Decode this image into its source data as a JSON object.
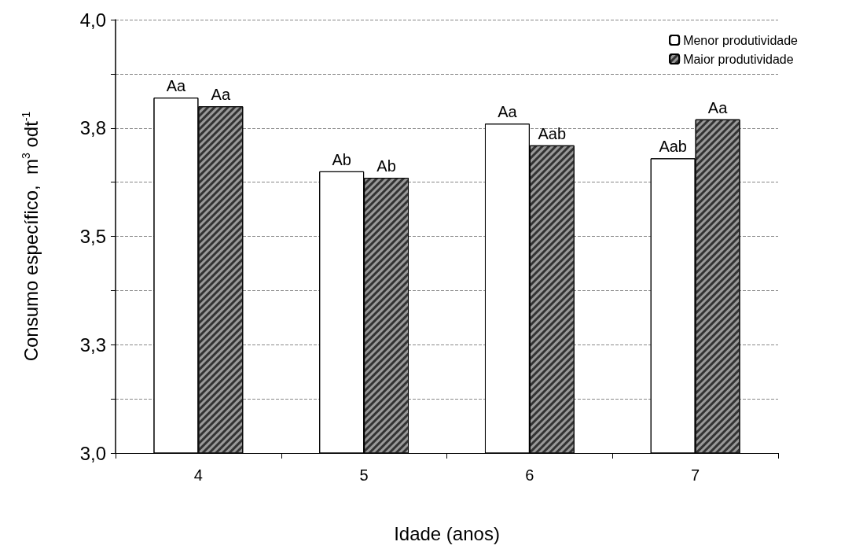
{
  "chart_data": {
    "type": "bar",
    "xlabel": "Idade (anos)",
    "ylabel": "Consumo específico,  m$^{3}$ odt$^{-1}$",
    "categories": [
      "4",
      "5",
      "6",
      "7"
    ],
    "series": [
      {
        "name": "Menor produtividade",
        "color": "#ffffff",
        "values": [
          3.82,
          3.65,
          3.76,
          3.68
        ],
        "value_labels": [
          "Aa",
          "Ab",
          "Aa",
          "Aab"
        ]
      },
      {
        "name": "Maior produtividade",
        "color": "#999999",
        "values": [
          3.8,
          3.635,
          3.71,
          3.77
        ],
        "value_labels": [
          "Aa",
          "Ab",
          "Aab",
          "Aa"
        ]
      }
    ],
    "ylim": [
      3,
      4
    ],
    "yticks": [
      {
        "value": 3,
        "label": "3,0"
      },
      {
        "value": 3.125,
        "label": null
      },
      {
        "value": 3.25,
        "label": "3,3"
      },
      {
        "value": 3.375,
        "label": null
      },
      {
        "value": 3.5,
        "label": "3,5"
      },
      {
        "value": 3.625,
        "label": null
      },
      {
        "value": 3.75,
        "label": "3,8"
      },
      {
        "value": 3.875,
        "label": null
      },
      {
        "value": 4,
        "label": "4,0"
      }
    ],
    "grid": "y",
    "legend": "top right"
  }
}
